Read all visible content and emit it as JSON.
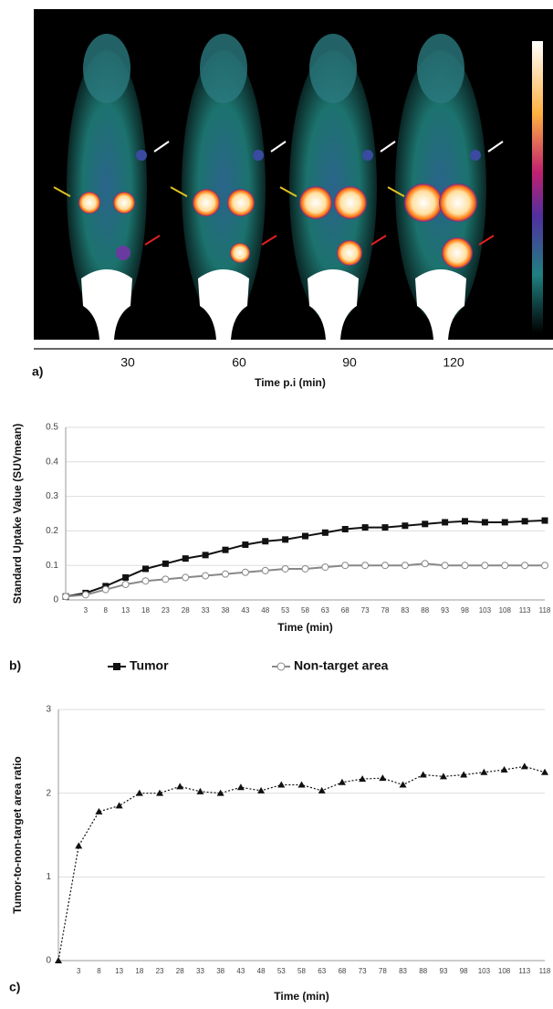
{
  "panel_a": {
    "label": "a)",
    "time_labels": [
      "30",
      "60",
      "90",
      "120"
    ],
    "axis_label": "Time p.i (min)"
  },
  "chart_data": [
    {
      "type": "line",
      "panel_label": "b)",
      "x_label": "Time (min)",
      "y_label": "Standard Uptake Value (SUVmean)",
      "categories": [
        null,
        "3",
        "8",
        "13",
        "18",
        "23",
        "28",
        "33",
        "38",
        "43",
        "48",
        "53",
        "58",
        "63",
        "68",
        "73",
        "78",
        "83",
        "88",
        "93",
        "98",
        "103",
        "108",
        "113",
        "118"
      ],
      "series": [
        {
          "name": "Tumor",
          "color": "#111111",
          "marker": "square",
          "values": [
            0.01,
            0.02,
            0.04,
            0.065,
            0.09,
            0.105,
            0.12,
            0.13,
            0.145,
            0.16,
            0.17,
            0.175,
            0.185,
            0.195,
            0.205,
            0.21,
            0.21,
            0.215,
            0.22,
            0.225,
            0.228,
            0.225,
            0.225,
            0.228,
            0.23
          ]
        },
        {
          "name": "Non-target area",
          "color": "#888888",
          "marker": "circle",
          "values": [
            0.01,
            0.015,
            0.03,
            0.045,
            0.055,
            0.06,
            0.065,
            0.07,
            0.075,
            0.08,
            0.085,
            0.09,
            0.09,
            0.095,
            0.1,
            0.1,
            0.1,
            0.1,
            0.105,
            0.1,
            0.1,
            0.1,
            0.1,
            0.1,
            0.1
          ]
        }
      ],
      "ylim": [
        0,
        0.5
      ],
      "yticks": [
        0,
        0.1,
        0.2,
        0.3,
        0.4,
        0.5
      ],
      "grid": true,
      "legend": "bottom"
    },
    {
      "type": "line",
      "panel_label": "c)",
      "x_label": "Time (min)",
      "y_label": "Tumor-to-non-target area ratio",
      "categories": [
        null,
        "3",
        "8",
        "13",
        "18",
        "23",
        "28",
        "33",
        "38",
        "43",
        "48",
        "53",
        "58",
        "63",
        "68",
        "73",
        "78",
        "83",
        "88",
        "93",
        "98",
        "103",
        "108",
        "113",
        "118"
      ],
      "series": [
        {
          "color": "#111111",
          "marker": "triangle",
          "line_style": "dotted",
          "values": [
            0,
            1.37,
            1.78,
            1.85,
            2.0,
            2.0,
            2.08,
            2.02,
            2.0,
            2.07,
            2.03,
            2.1,
            2.1,
            2.03,
            2.13,
            2.17,
            2.18,
            2.1,
            2.22,
            2.2,
            2.22,
            2.25,
            2.28,
            2.32,
            2.25
          ]
        }
      ],
      "ylim": [
        0,
        3
      ],
      "yticks": [
        0,
        1,
        2,
        3
      ],
      "grid": true
    }
  ]
}
